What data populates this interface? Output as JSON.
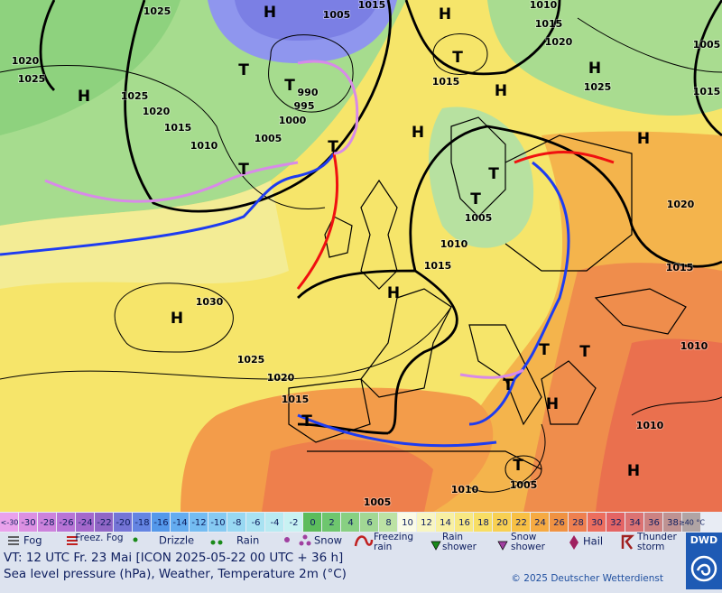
{
  "map": {
    "isobar_labels": [
      "1025",
      "1005",
      "1015",
      "1010",
      "1015",
      "1020",
      "1025",
      "1025",
      "1020",
      "1015",
      "1010",
      "1005",
      "1000",
      "995",
      "990",
      "1020",
      "1015",
      "1025",
      "1020",
      "1015",
      "1005",
      "1010",
      "1015",
      "1030",
      "1025",
      "1020",
      "1015",
      "1010",
      "1010",
      "1010",
      "1005",
      "1005",
      "1015",
      "1005"
    ],
    "centers": [
      "H",
      "H",
      "H",
      "H",
      "H",
      "H",
      "H",
      "H",
      "H",
      "H",
      "H",
      "T",
      "T",
      "T",
      "T",
      "T",
      "T",
      "T",
      "T",
      "T",
      "T",
      "T",
      "T"
    ]
  },
  "temperature_scale": {
    "labels": [
      "<-30",
      "-30",
      "-28",
      "-26",
      "-24",
      "-22",
      "-20",
      "-18",
      "-16",
      "-14",
      "-12",
      "-10",
      "-8",
      "-6",
      "-4",
      "-2",
      "0",
      "2",
      "4",
      "6",
      "8",
      "10",
      "12",
      "14",
      "16",
      "18",
      "20",
      "22",
      "24",
      "26",
      "28",
      "30",
      "32",
      "34",
      "36",
      "38",
      "≥40 °C"
    ],
    "colors": [
      "#eaa2ec",
      "#dc90e2",
      "#cc82dc",
      "#b874d6",
      "#a468cc",
      "#9066c6",
      "#7474d6",
      "#6484e2",
      "#5498ea",
      "#64acf0",
      "#74bcf2",
      "#86caf2",
      "#98d8f2",
      "#a8e2f2",
      "#b8eaf2",
      "#c8f2f2",
      "#5cbc5c",
      "#6ec66e",
      "#88d082",
      "#a2d894",
      "#bce2a4",
      "#fbfbe6",
      "#f8f6c2",
      "#f8f0a2",
      "#f8e882",
      "#f8de64",
      "#f8d052",
      "#f8c044",
      "#f6aa42",
      "#f09242",
      "#ee8050",
      "#ec6e5e",
      "#e46464",
      "#dc7272",
      "#cc8282",
      "#be9292",
      "#b0a4a4"
    ]
  },
  "legend": [
    "Fog",
    "Freez. Fog",
    "Drizzle",
    "Rain",
    "Snow",
    [
      "Freezing",
      "rain"
    ],
    [
      "Rain",
      "shower"
    ],
    [
      "Snow",
      "shower"
    ],
    "Hail",
    [
      "Thunder",
      "storm"
    ]
  ],
  "footer": {
    "valid_time": "VT: 12 UTC Fr.  23 Mai [ICON 2025-05-22  00 UTC + 36 h]",
    "description": "Sea level pressure (hPa), Weather, Temperature 2m (°C)",
    "copyright": "© 2025 Deutscher Wetterdienst",
    "logo": "DWD"
  }
}
